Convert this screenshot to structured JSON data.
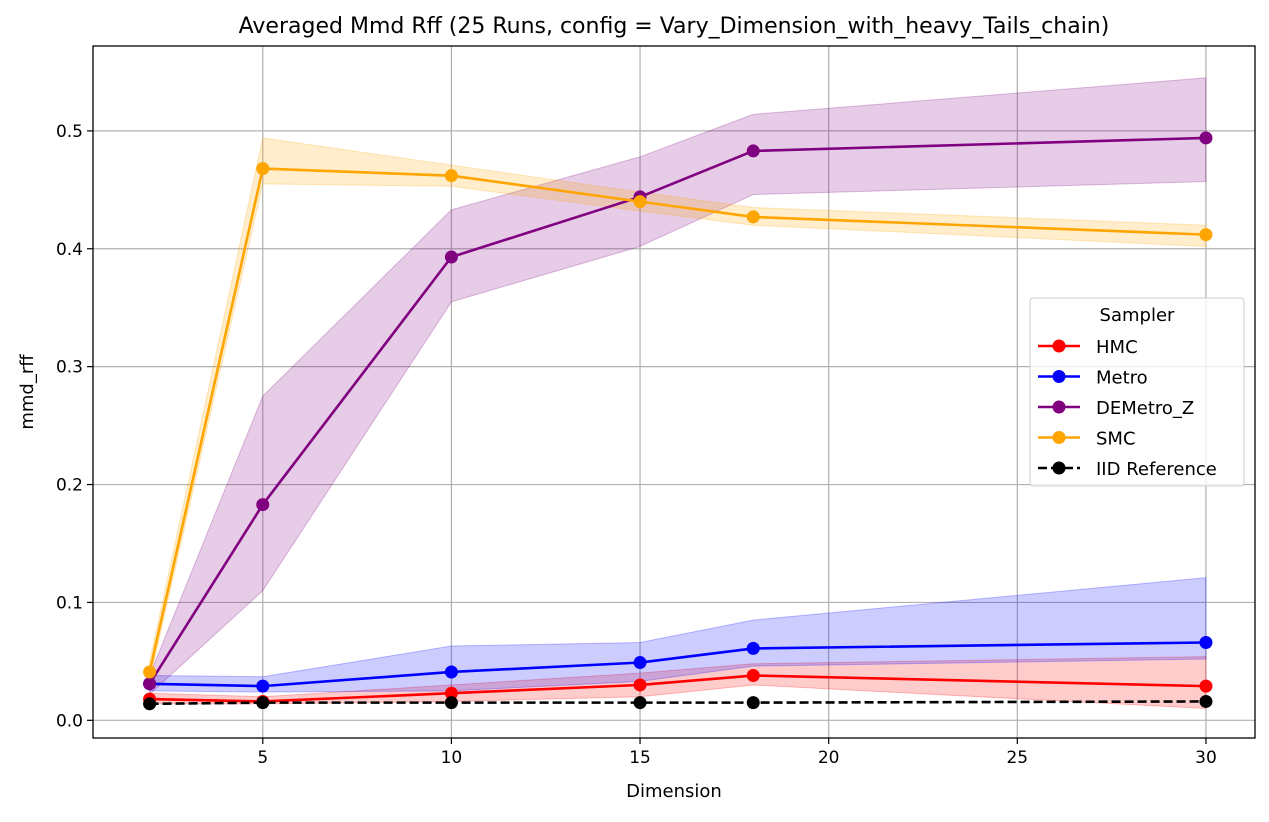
{
  "chart_data": {
    "type": "line",
    "title": "Averaged Mmd Rff (25 Runs, config = Vary_Dimension_with_heavy_Tails_chain)",
    "xlabel": "Dimension",
    "ylabel": "mmd_rff",
    "xlim": [
      0.5,
      31.3
    ],
    "ylim": [
      -0.015,
      0.572
    ],
    "xticks": [
      5,
      10,
      15,
      20,
      25,
      30
    ],
    "yticks": [
      0.0,
      0.1,
      0.2,
      0.3,
      0.4,
      0.5
    ],
    "xtick_labels": [
      "5",
      "10",
      "15",
      "20",
      "25",
      "30"
    ],
    "ytick_labels": [
      "0.0",
      "0.1",
      "0.2",
      "0.3",
      "0.4",
      "0.5"
    ],
    "grid": true,
    "legend": {
      "title": "Sampler",
      "position": "center-right"
    },
    "x": [
      2,
      5,
      10,
      15,
      18,
      30
    ],
    "series": [
      {
        "name": "HMC",
        "color": "#ff0000",
        "linestyle": "solid",
        "values": [
          0.018,
          0.016,
          0.023,
          0.03,
          0.038,
          0.029
        ],
        "band_lower": [
          0.014,
          0.014,
          0.016,
          0.02,
          0.03,
          0.01
        ],
        "band_upper": [
          0.023,
          0.02,
          0.03,
          0.04,
          0.048,
          0.054
        ]
      },
      {
        "name": "Metro",
        "color": "#0000ff",
        "linestyle": "solid",
        "values": [
          0.031,
          0.029,
          0.041,
          0.049,
          0.061,
          0.066
        ],
        "band_lower": [
          0.025,
          0.024,
          0.025,
          0.033,
          0.046,
          0.052
        ],
        "band_upper": [
          0.038,
          0.037,
          0.063,
          0.066,
          0.085,
          0.121
        ]
      },
      {
        "name": "DEMetro_Z",
        "color": "#800080",
        "linestyle": "solid",
        "values": [
          0.031,
          0.183,
          0.393,
          0.444,
          0.483,
          0.494
        ],
        "band_lower": [
          0.022,
          0.11,
          0.355,
          0.402,
          0.446,
          0.457
        ],
        "band_upper": [
          0.038,
          0.275,
          0.433,
          0.478,
          0.514,
          0.545
        ]
      },
      {
        "name": "SMC",
        "color": "#ffa500",
        "linestyle": "solid",
        "values": [
          0.041,
          0.468,
          0.462,
          0.44,
          0.427,
          0.412
        ],
        "band_lower": [
          0.033,
          0.455,
          0.453,
          0.432,
          0.42,
          0.402
        ],
        "band_upper": [
          0.05,
          0.494,
          0.471,
          0.448,
          0.435,
          0.42
        ]
      },
      {
        "name": "IID Reference",
        "color": "#000000",
        "linestyle": "dashed",
        "values": [
          0.014,
          0.015,
          0.015,
          0.015,
          0.015,
          0.016
        ]
      }
    ]
  }
}
